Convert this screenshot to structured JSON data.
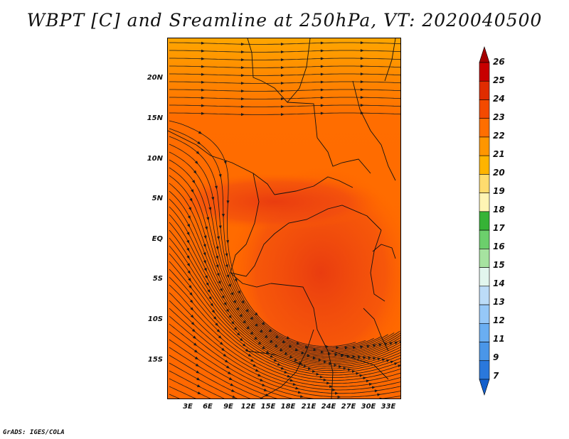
{
  "title": "WBPT [C] and Sreamline at 250hPa, VT: 2020040500",
  "credit": "GrADS: IGES/COLA",
  "map": {
    "variable": "WBPT",
    "units": "C",
    "level": "250hPa",
    "valid_time": "2020040500",
    "latitude_labels": [
      "20N",
      "15N",
      "10N",
      "5N",
      "EQ",
      "5S",
      "10S",
      "15S"
    ],
    "latitude_values": [
      20,
      15,
      10,
      5,
      0,
      -5,
      -10,
      -15
    ],
    "longitude_labels": [
      "3E",
      "6E",
      "9E",
      "12E",
      "15E",
      "18E",
      "21E",
      "24E",
      "27E",
      "30E",
      "33E"
    ],
    "longitude_values": [
      3,
      6,
      9,
      12,
      15,
      18,
      21,
      24,
      27,
      30,
      33
    ],
    "lat_range": [
      -20,
      24.5
    ],
    "lon_range": [
      0.5,
      35
    ],
    "dominant_field_colors": {
      "north": "#ffa800",
      "mid": "#ff6a00",
      "core": "#f24a10"
    }
  },
  "colorbar": {
    "labels": [
      "26",
      "25",
      "24",
      "23",
      "22",
      "21",
      "20",
      "19",
      "18",
      "17",
      "16",
      "15",
      "14",
      "13",
      "12",
      "11",
      "9",
      "7"
    ],
    "colors": [
      "#a50000",
      "#c80000",
      "#e02c00",
      "#f44a00",
      "#ff6e00",
      "#ff9600",
      "#ffb400",
      "#ffdc6e",
      "#fff5b4",
      "#36b336",
      "#6ccf6c",
      "#a6e3a0",
      "#e2f6ee",
      "#bcdcf8",
      "#96c8f8",
      "#6aaef2",
      "#4a96e8",
      "#2a78dc",
      "#1460cc"
    ]
  }
}
